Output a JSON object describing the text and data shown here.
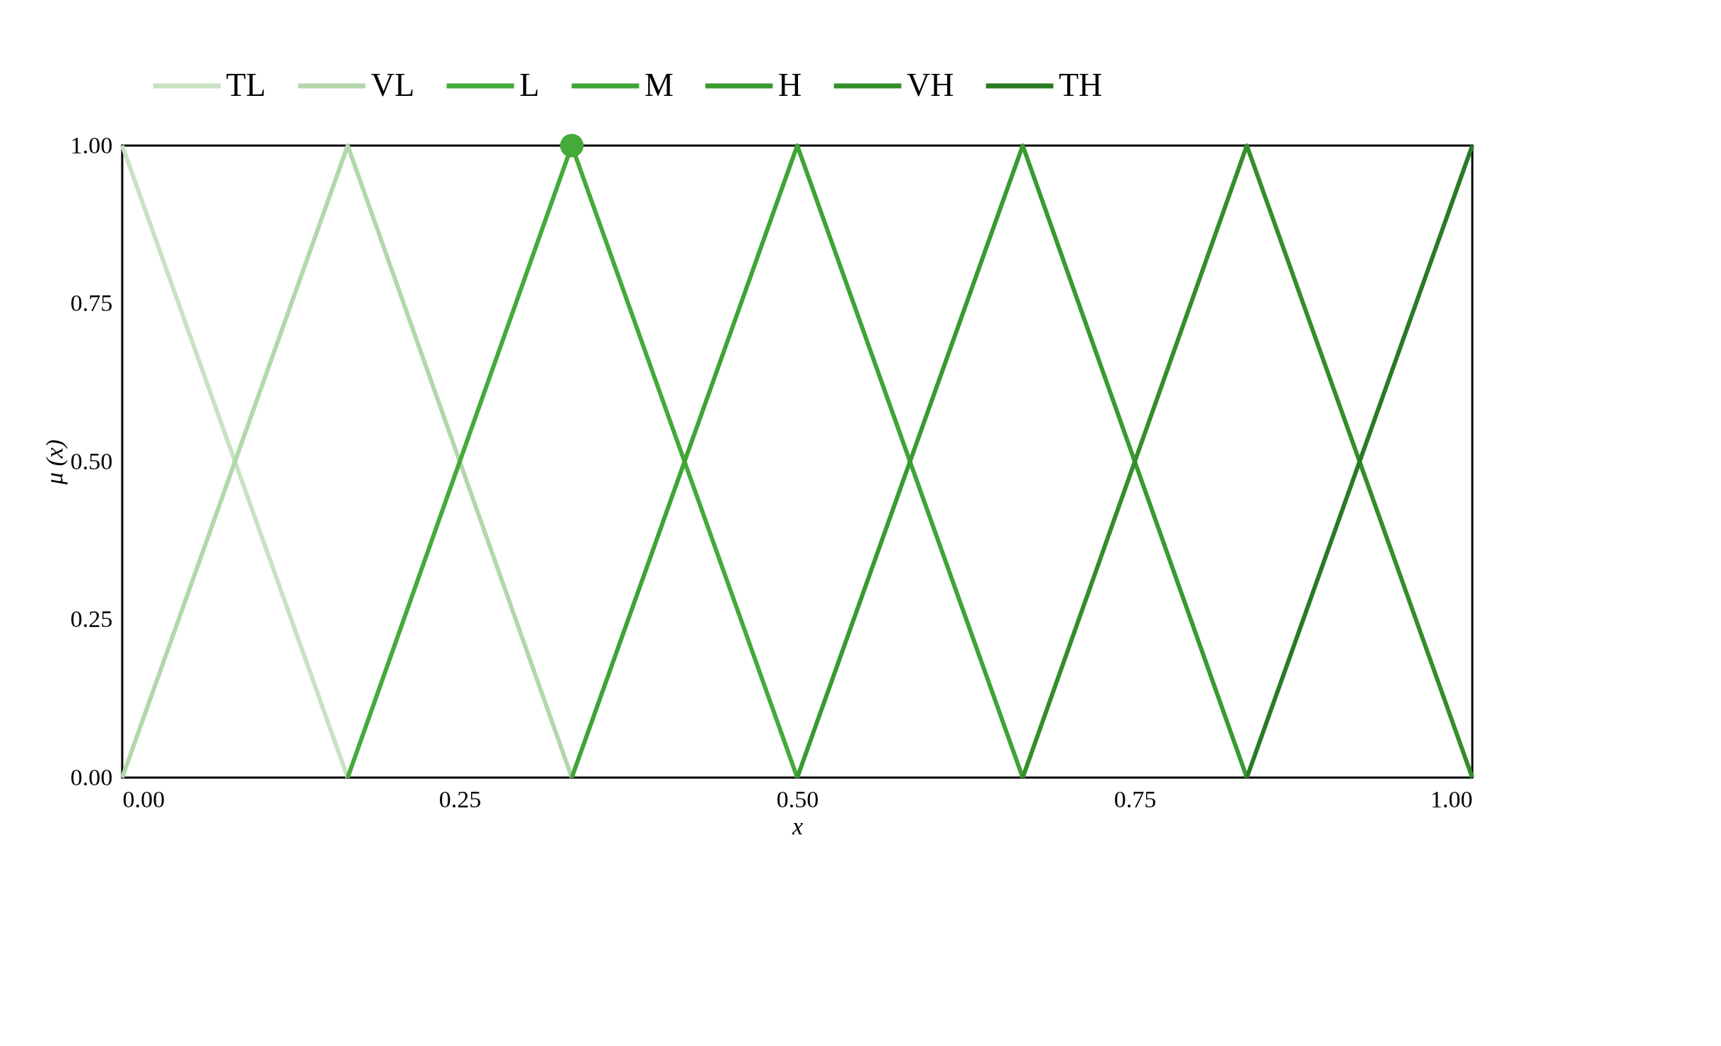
{
  "chart_data": {
    "type": "line",
    "xlabel": "x",
    "ylabel": "μ (x)",
    "xlim": [
      0,
      1
    ],
    "ylim": [
      0,
      1
    ],
    "xticks": [
      {
        "value": 0,
        "label": "0.00"
      },
      {
        "value": 0.25,
        "label": "0.25"
      },
      {
        "value": 0.5,
        "label": "0.50"
      },
      {
        "value": 0.75,
        "label": "0.75"
      },
      {
        "value": 1,
        "label": "1.00"
      }
    ],
    "yticks": [
      {
        "value": 0,
        "label": "0.00"
      },
      {
        "value": 0.25,
        "label": "0.25"
      },
      {
        "value": 0.5,
        "label": "0.50"
      },
      {
        "value": 0.75,
        "label": "0.75"
      },
      {
        "value": 1,
        "label": "1.00"
      }
    ],
    "grid": false,
    "legend": "top",
    "line_style": "solid",
    "series": [
      {
        "name": "TL",
        "color": "#c8e2c3",
        "x": [
          0,
          0.167
        ],
        "values": [
          1,
          0
        ]
      },
      {
        "name": "VL",
        "color": "#b3d7ac",
        "x": [
          0,
          0.167,
          0.333
        ],
        "values": [
          0,
          1,
          0
        ]
      },
      {
        "name": "L",
        "color": "#44aa3a",
        "x": [
          0.167,
          0.333,
          0.5
        ],
        "values": [
          0,
          1,
          0
        ]
      },
      {
        "name": "M",
        "color": "#3fa436",
        "x": [
          0.333,
          0.5,
          0.667
        ],
        "values": [
          0,
          1,
          0
        ]
      },
      {
        "name": "H",
        "color": "#399a30",
        "x": [
          0.5,
          0.667,
          0.833
        ],
        "values": [
          0,
          1,
          0
        ]
      },
      {
        "name": "VH",
        "color": "#338e2b",
        "x": [
          0.667,
          0.833,
          1
        ],
        "values": [
          0,
          1,
          0
        ]
      },
      {
        "name": "TH",
        "color": "#2b7a25",
        "x": [
          0.833,
          1
        ],
        "values": [
          0,
          1
        ]
      },
      {
        "type": "scatter",
        "marker": "circle",
        "color": "#44aa3a",
        "x": [
          0.333
        ],
        "values": [
          1
        ]
      }
    ]
  }
}
